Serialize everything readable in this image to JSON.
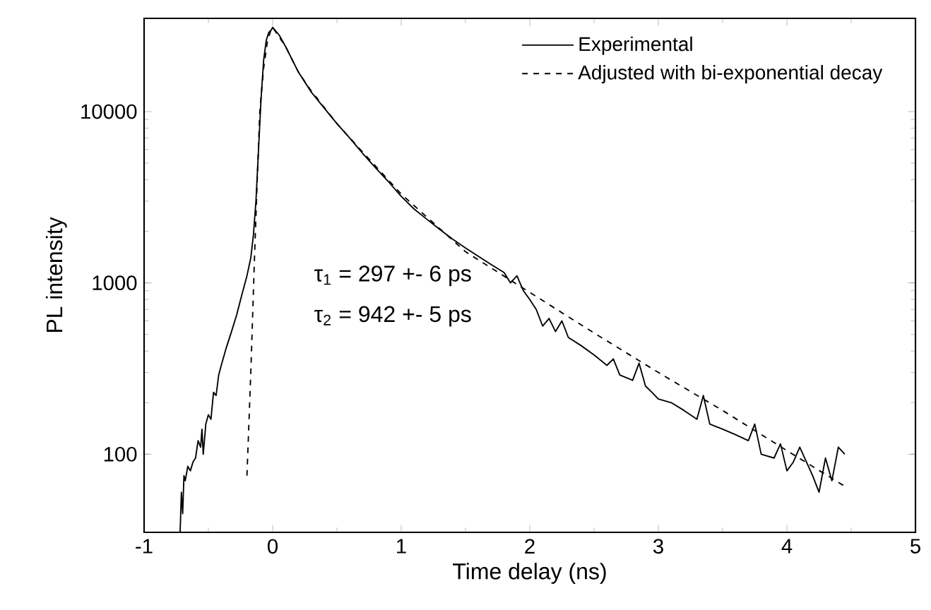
{
  "chart_data": {
    "type": "line",
    "xlabel": "Time delay (ns)",
    "ylabel": "PL intensity",
    "log": "y",
    "xlim": [
      -1,
      5
    ],
    "xticks": [
      -1,
      0,
      1,
      2,
      3,
      4,
      5
    ],
    "ylim": [
      35,
      35000
    ],
    "yticks": [
      100,
      1000,
      10000
    ],
    "legend": "top right",
    "grid": false,
    "annotations": [
      "τ$_{1}$ = 297 +- 6 ps",
      "τ$_{2}$ = 942 +- 5 ps"
    ],
    "series": [
      {
        "name": "Experimental",
        "color": "#000000",
        "line_style": "solid",
        "x": [
          -0.72,
          -0.71,
          -0.7,
          -0.69,
          -0.68,
          -0.66,
          -0.64,
          -0.62,
          -0.6,
          -0.58,
          -0.56,
          -0.55,
          -0.54,
          -0.52,
          -0.5,
          -0.48,
          -0.46,
          -0.44,
          -0.42,
          -0.4,
          -0.36,
          -0.32,
          -0.28,
          -0.24,
          -0.2,
          -0.17,
          -0.15,
          -0.13,
          -0.11,
          -0.09,
          -0.07,
          -0.05,
          -0.03,
          -0.01,
          0.0,
          0.05,
          0.1,
          0.2,
          0.3,
          0.4,
          0.5,
          0.6,
          0.7,
          0.8,
          0.9,
          1.0,
          1.1,
          1.2,
          1.3,
          1.4,
          1.5,
          1.6,
          1.7,
          1.8,
          1.85,
          1.9,
          1.95,
          2.0,
          2.05,
          2.1,
          2.15,
          2.2,
          2.25,
          2.3,
          2.4,
          2.5,
          2.6,
          2.65,
          2.7,
          2.8,
          2.85,
          2.9,
          2.95,
          3.0,
          3.1,
          3.2,
          3.3,
          3.35,
          3.4,
          3.5,
          3.6,
          3.7,
          3.75,
          3.8,
          3.9,
          3.95,
          4.0,
          4.05,
          4.1,
          4.2,
          4.25,
          4.3,
          4.35,
          4.4,
          4.45
        ],
        "values": [
          35,
          60,
          45,
          75,
          70,
          85,
          80,
          90,
          95,
          120,
          110,
          140,
          100,
          150,
          170,
          160,
          230,
          220,
          290,
          330,
          420,
          520,
          650,
          850,
          1100,
          1400,
          1900,
          3000,
          6000,
          12000,
          20000,
          26000,
          29000,
          30000,
          31000,
          28000,
          24000,
          17000,
          13000,
          10500,
          8500,
          7000,
          5700,
          4700,
          3900,
          3200,
          2700,
          2350,
          2050,
          1800,
          1600,
          1430,
          1280,
          1150,
          1000,
          1100,
          900,
          800,
          700,
          560,
          620,
          520,
          600,
          480,
          430,
          380,
          330,
          360,
          290,
          270,
          340,
          250,
          230,
          210,
          200,
          180,
          160,
          220,
          150,
          140,
          130,
          120,
          150,
          100,
          95,
          115,
          80,
          90,
          110,
          75,
          60,
          95,
          70,
          110,
          100
        ]
      },
      {
        "name": "Adjusted with bi-exponential decay",
        "color": "#000000",
        "line_style": "dashed",
        "x": [
          -0.2,
          -0.17,
          -0.14,
          -0.12,
          -0.1,
          -0.07,
          -0.04,
          -0.01,
          0.0,
          0.1,
          0.2,
          0.3,
          0.5,
          0.7,
          1.0,
          1.5,
          2.0,
          2.5,
          3.0,
          3.5,
          4.0,
          4.45
        ],
        "values": [
          75,
          300,
          1500,
          4000,
          10000,
          18000,
          26000,
          30500,
          31000,
          24000,
          17000,
          13200,
          8500,
          5800,
          3300,
          1520,
          880,
          510,
          300,
          180,
          105,
          65
        ]
      }
    ]
  }
}
